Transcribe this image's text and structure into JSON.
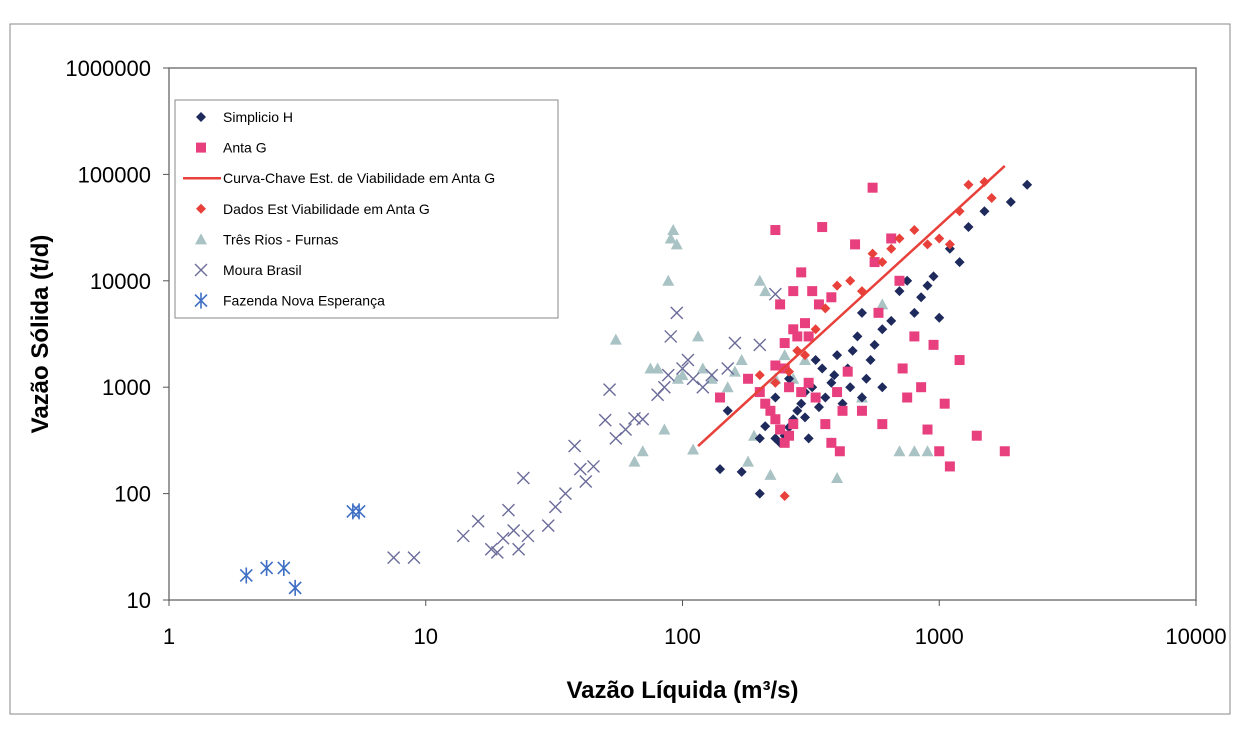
{
  "chart_data": {
    "type": "scatter",
    "xlabel": "Vazão Líquida (m³/s)",
    "ylabel": "Vazão Sólida (t/d)",
    "x_scale": "log",
    "y_scale": "log",
    "xlim": [
      1,
      10000
    ],
    "ylim": [
      10,
      1000000
    ],
    "x_ticks": [
      1,
      10,
      100,
      1000,
      10000
    ],
    "y_ticks": [
      10,
      100,
      1000,
      10000,
      100000,
      1000000
    ],
    "x_tick_labels": [
      "1",
      "10",
      "100",
      "1000",
      "10000"
    ],
    "y_tick_labels": [
      "10",
      "100",
      "1000",
      "10000",
      "100000",
      "1000000"
    ],
    "grid": false,
    "legend_position": "top-left",
    "series": [
      {
        "name": "Simplicio H",
        "marker": "diamond",
        "color": "#1f2a5c",
        "points": [
          [
            150,
            600
          ],
          [
            140,
            170
          ],
          [
            170,
            160
          ],
          [
            200,
            100
          ],
          [
            200,
            330
          ],
          [
            210,
            430
          ],
          [
            230,
            330
          ],
          [
            240,
            300
          ],
          [
            250,
            350
          ],
          [
            260,
            420
          ],
          [
            270,
            500
          ],
          [
            280,
            600
          ],
          [
            290,
            700
          ],
          [
            300,
            520
          ],
          [
            310,
            330
          ],
          [
            320,
            1000
          ],
          [
            330,
            1800
          ],
          [
            350,
            1500
          ],
          [
            360,
            800
          ],
          [
            380,
            1100
          ],
          [
            390,
            1300
          ],
          [
            400,
            2000
          ],
          [
            420,
            700
          ],
          [
            440,
            1500
          ],
          [
            460,
            2200
          ],
          [
            480,
            3000
          ],
          [
            500,
            5000
          ],
          [
            520,
            1200
          ],
          [
            540,
            1800
          ],
          [
            560,
            2500
          ],
          [
            600,
            3500
          ],
          [
            650,
            4200
          ],
          [
            700,
            8000
          ],
          [
            750,
            10000
          ],
          [
            800,
            5000
          ],
          [
            850,
            7000
          ],
          [
            900,
            9000
          ],
          [
            950,
            11000
          ],
          [
            1000,
            4500
          ],
          [
            1100,
            20000
          ],
          [
            1200,
            15000
          ],
          [
            1300,
            32000
          ],
          [
            1500,
            45000
          ],
          [
            1900,
            55000
          ],
          [
            2200,
            80000
          ],
          [
            230,
            800
          ],
          [
            260,
            1200
          ],
          [
            300,
            900
          ],
          [
            340,
            650
          ],
          [
            500,
            800
          ],
          [
            600,
            1000
          ],
          [
            250,
            1500
          ],
          [
            450,
            1000
          ]
        ]
      },
      {
        "name": "Anta G",
        "marker": "square",
        "color": "#e8407f",
        "points": [
          [
            230,
            30000
          ],
          [
            240,
            6000
          ],
          [
            250,
            1500
          ],
          [
            260,
            1000
          ],
          [
            270,
            8000
          ],
          [
            280,
            3000
          ],
          [
            290,
            12000
          ],
          [
            300,
            4000
          ],
          [
            310,
            3000
          ],
          [
            320,
            8000
          ],
          [
            340,
            6000
          ],
          [
            350,
            32000
          ],
          [
            380,
            7000
          ],
          [
            400,
            900
          ],
          [
            420,
            600
          ],
          [
            440,
            1400
          ],
          [
            470,
            22000
          ],
          [
            500,
            600
          ],
          [
            550,
            75000
          ],
          [
            560,
            15000
          ],
          [
            580,
            5000
          ],
          [
            600,
            450
          ],
          [
            650,
            25000
          ],
          [
            700,
            10000
          ],
          [
            720,
            1500
          ],
          [
            750,
            800
          ],
          [
            800,
            3000
          ],
          [
            850,
            1000
          ],
          [
            900,
            400
          ],
          [
            950,
            2500
          ],
          [
            1000,
            250
          ],
          [
            1050,
            700
          ],
          [
            1100,
            180
          ],
          [
            1200,
            1800
          ],
          [
            1400,
            350
          ],
          [
            1800,
            250
          ],
          [
            140,
            800
          ],
          [
            180,
            1200
          ],
          [
            200,
            900
          ],
          [
            210,
            700
          ],
          [
            220,
            600
          ],
          [
            230,
            500
          ],
          [
            240,
            400
          ],
          [
            250,
            300
          ],
          [
            260,
            350
          ],
          [
            270,
            450
          ],
          [
            290,
            900
          ],
          [
            310,
            1100
          ],
          [
            330,
            800
          ],
          [
            360,
            450
          ],
          [
            380,
            300
          ],
          [
            410,
            250
          ],
          [
            230,
            1600
          ],
          [
            250,
            2600
          ],
          [
            270,
            3500
          ]
        ]
      },
      {
        "name": "Dados Est Viabilidade em Anta G",
        "marker": "diamond",
        "color": "#e8403a",
        "points": [
          [
            200,
            1300
          ],
          [
            230,
            1100
          ],
          [
            260,
            1400
          ],
          [
            280,
            2200
          ],
          [
            300,
            2000
          ],
          [
            330,
            3500
          ],
          [
            360,
            5500
          ],
          [
            400,
            9000
          ],
          [
            450,
            10000
          ],
          [
            500,
            8000
          ],
          [
            550,
            18000
          ],
          [
            600,
            15000
          ],
          [
            650,
            20000
          ],
          [
            700,
            25000
          ],
          [
            800,
            30000
          ],
          [
            900,
            22000
          ],
          [
            1000,
            25000
          ],
          [
            1100,
            22000
          ],
          [
            1200,
            45000
          ],
          [
            1300,
            80000
          ],
          [
            1500,
            85000
          ],
          [
            1600,
            60000
          ],
          [
            250,
            95
          ]
        ]
      },
      {
        "name": "Três Rios - Furnas",
        "marker": "triangle",
        "color": "#a9c2c4",
        "points": [
          [
            55,
            2800
          ],
          [
            65,
            200
          ],
          [
            70,
            250
          ],
          [
            75,
            1500
          ],
          [
            80,
            1500
          ],
          [
            85,
            400
          ],
          [
            88,
            10000
          ],
          [
            90,
            25000
          ],
          [
            92,
            30000
          ],
          [
            95,
            22000
          ],
          [
            96,
            1200
          ],
          [
            100,
            1300
          ],
          [
            110,
            260
          ],
          [
            115,
            3000
          ],
          [
            120,
            1500
          ],
          [
            130,
            1200
          ],
          [
            150,
            1000
          ],
          [
            160,
            1400
          ],
          [
            170,
            1800
          ],
          [
            180,
            200
          ],
          [
            190,
            350
          ],
          [
            200,
            10000
          ],
          [
            210,
            8000
          ],
          [
            220,
            150
          ],
          [
            230,
            1200
          ],
          [
            250,
            2000
          ],
          [
            270,
            1200
          ],
          [
            300,
            1800
          ],
          [
            400,
            140
          ],
          [
            500,
            800
          ],
          [
            600,
            6000
          ],
          [
            700,
            250
          ],
          [
            800,
            250
          ],
          [
            900,
            250
          ]
        ]
      },
      {
        "name": "Moura Brasil",
        "marker": "x",
        "color": "#6b6b9a",
        "points": [
          [
            7.5,
            25
          ],
          [
            9,
            25
          ],
          [
            14,
            40
          ],
          [
            16,
            55
          ],
          [
            18,
            30
          ],
          [
            19,
            28
          ],
          [
            20,
            38
          ],
          [
            21,
            70
          ],
          [
            22,
            45
          ],
          [
            23,
            30
          ],
          [
            24,
            140
          ],
          [
            25,
            40
          ],
          [
            30,
            50
          ],
          [
            32,
            75
          ],
          [
            35,
            100
          ],
          [
            38,
            280
          ],
          [
            40,
            170
          ],
          [
            42,
            130
          ],
          [
            45,
            180
          ],
          [
            50,
            490
          ],
          [
            52,
            950
          ],
          [
            55,
            330
          ],
          [
            60,
            400
          ],
          [
            65,
            510
          ],
          [
            70,
            500
          ],
          [
            80,
            850
          ],
          [
            85,
            1000
          ],
          [
            88,
            1300
          ],
          [
            90,
            3000
          ],
          [
            95,
            5000
          ],
          [
            100,
            1500
          ],
          [
            105,
            1800
          ],
          [
            110,
            1200
          ],
          [
            120,
            1000
          ],
          [
            130,
            1300
          ],
          [
            150,
            1500
          ],
          [
            160,
            2600
          ],
          [
            200,
            2500
          ],
          [
            230,
            7500
          ]
        ]
      },
      {
        "name": "Fazenda Nova Esperança",
        "marker": "asterisk",
        "color": "#3e6fc4",
        "points": [
          [
            2.0,
            17
          ],
          [
            2.4,
            20
          ],
          [
            2.8,
            20
          ],
          [
            3.1,
            13
          ],
          [
            5.2,
            68
          ],
          [
            5.5,
            68
          ]
        ]
      }
    ],
    "lines": [
      {
        "name": "Curva-Chave Est. de Viabilidade em Anta G",
        "color": "#e8403a",
        "points": [
          [
            115,
            280
          ],
          [
            1800,
            120000
          ]
        ]
      }
    ],
    "legend_entries": [
      "Simplicio H",
      "Anta G",
      "Curva-Chave Est. de Viabilidade em Anta G",
      "Dados Est Viabilidade em Anta G",
      "Três Rios - Furnas",
      "Moura Brasil",
      "Fazenda Nova Esperança"
    ]
  }
}
